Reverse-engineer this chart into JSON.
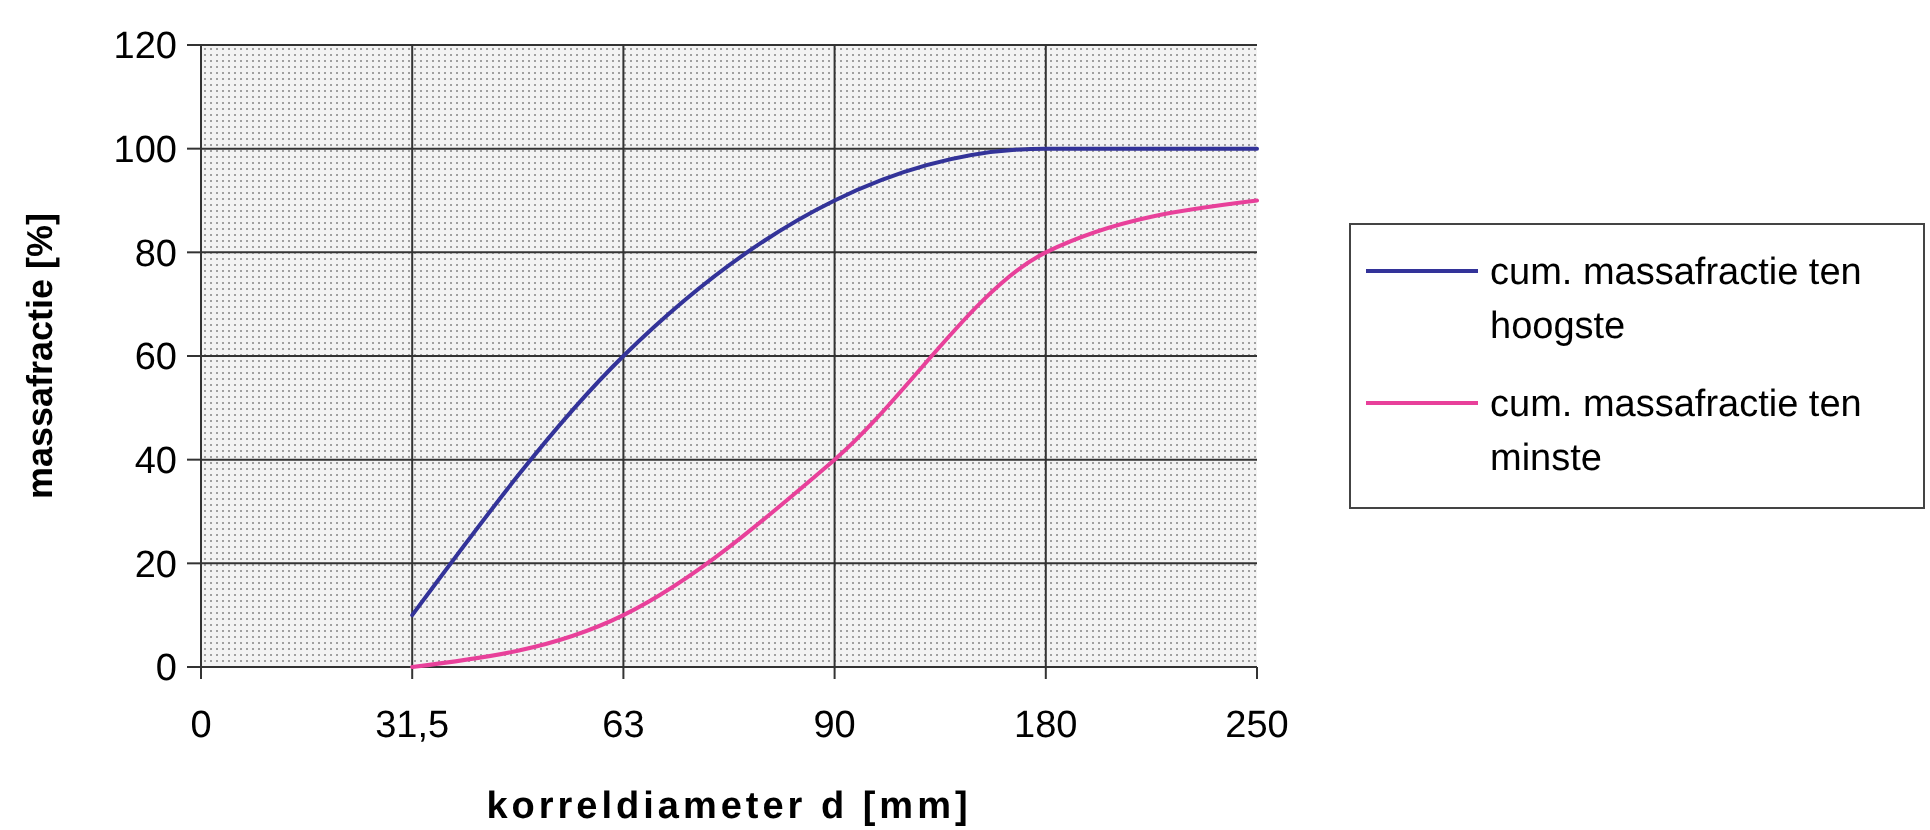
{
  "chart_data": {
    "type": "line",
    "xlabel": "korreldiameter d [mm]",
    "ylabel": "massafractie [%]",
    "categories": [
      "0",
      "31,5",
      "63",
      "90",
      "180",
      "250"
    ],
    "series": [
      {
        "name": "cum. massafractie ten hoogste",
        "color": "#333399",
        "values": [
          null,
          10,
          60,
          90,
          100,
          100
        ]
      },
      {
        "name": "cum. massafractie ten minste",
        "color": "#e8409a",
        "values": [
          null,
          0,
          10,
          40,
          80,
          90
        ]
      }
    ],
    "ylim": [
      0,
      120
    ],
    "yticks": [
      0,
      20,
      40,
      60,
      80,
      100,
      120
    ],
    "grid": true,
    "legend": "right"
  }
}
